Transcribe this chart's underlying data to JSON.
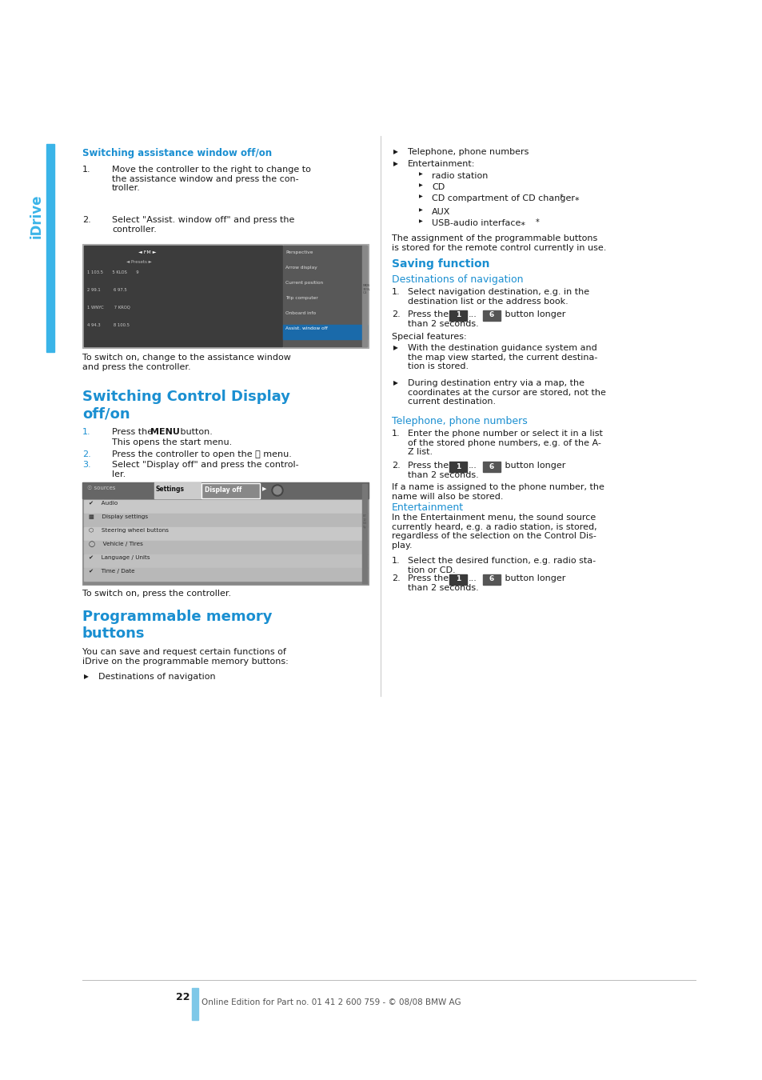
{
  "page_bg": "#ffffff",
  "page_width": 9.54,
  "page_height": 13.5,
  "dpi": 100,
  "blue_color": "#1a8fd1",
  "dark_text": "#1a1a1a",
  "idrive_color": "#3ab4e8",
  "section1_title": "Switching assistance window off/on",
  "section2_title_line1": "Switching Control Display",
  "section2_title_line2": "off/on",
  "section3_title_line1": "Programmable memory",
  "section3_title_line2": "buttons",
  "saving_title": "Saving function",
  "dest_nav_title": "Destinations of navigation",
  "telephone_title": "Telephone, phone numbers",
  "entertainment_title": "Entertainment",
  "page_number": "22",
  "footer": "Online Edition for Part no. 01 41 2 600 759 - © 08/08 BMW AG"
}
